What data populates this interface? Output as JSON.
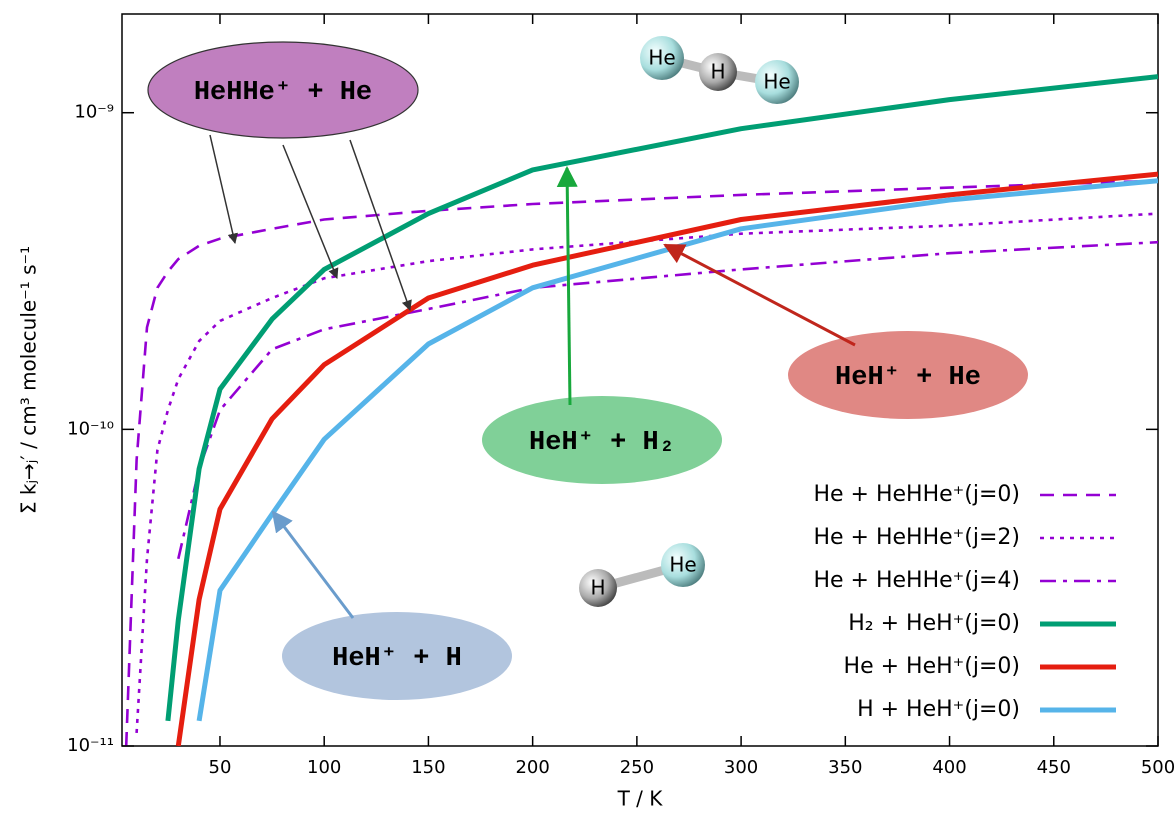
{
  "chart_data": {
    "type": "line",
    "x_label": "T / K",
    "y_label": "Σ kⱼ→ⱼ′ / cm³ molecule⁻¹ s⁻¹",
    "log_y": true,
    "xlim": [
      3,
      500
    ],
    "ylim": [
      1e-11,
      2.05e-09
    ],
    "xticks": [
      50,
      100,
      150,
      200,
      250,
      300,
      350,
      400,
      450,
      500
    ],
    "yticks": [
      {
        "value": 1e-11,
        "label": "10⁻¹¹"
      },
      {
        "value": 1e-10,
        "label": "10⁻¹⁰"
      },
      {
        "value": 1e-09,
        "label": "10⁻⁹"
      }
    ],
    "legend": "lower right",
    "x": [
      5,
      10,
      15,
      20,
      25,
      30,
      40,
      50,
      75,
      100,
      150,
      200,
      300,
      400,
      500
    ],
    "series": [
      {
        "name": "He + HeHHe⁺(j=0)",
        "color": "#9400d3",
        "style": "dashed",
        "values": [
          1e-11,
          8e-11,
          2.1e-10,
          2.8e-10,
          3.15e-10,
          3.45e-10,
          3.8e-10,
          4e-10,
          4.3e-10,
          4.6e-10,
          4.9e-10,
          5.15e-10,
          5.5e-10,
          5.8e-10,
          6.1e-10
        ]
      },
      {
        "name": "He + HeHHe⁺(j=2)",
        "color": "#9400d3",
        "style": "dotted",
        "values": [
          null,
          1.1e-11,
          3.9e-11,
          8.6e-11,
          1.15e-10,
          1.44e-10,
          1.9e-10,
          2.2e-10,
          2.6e-10,
          3e-10,
          3.4e-10,
          3.7e-10,
          4.15e-10,
          4.4e-10,
          4.8e-10
        ]
      },
      {
        "name": "He + HeHHe⁺(j=4)",
        "color": "#9400d3",
        "style": "dashdot",
        "values": [
          null,
          null,
          null,
          null,
          null,
          3.9e-11,
          7.5e-11,
          1.15e-10,
          1.79e-10,
          2.07e-10,
          2.4e-10,
          2.8e-10,
          3.2e-10,
          3.6e-10,
          3.9e-10
        ]
      },
      {
        "name": "H₂ + HeH⁺(j=0)",
        "color": "#009e73",
        "style": "solid",
        "values": [
          null,
          null,
          null,
          null,
          1.2e-11,
          2.5e-11,
          7.5e-11,
          1.34e-10,
          2.23e-10,
          3.2e-10,
          4.8e-10,
          6.6e-10,
          8.9e-10,
          1.1e-09,
          1.3e-09
        ]
      },
      {
        "name": "He + HeH⁺(j=0)",
        "color": "#e51e10",
        "style": "solid",
        "values": [
          null,
          null,
          null,
          null,
          null,
          1e-11,
          2.9e-11,
          5.6e-11,
          1.08e-10,
          1.6e-10,
          2.6e-10,
          3.3e-10,
          4.6e-10,
          5.5e-10,
          6.4e-10
        ]
      },
      {
        "name": "H + HeH⁺(j=0)",
        "color": "#56b4e9",
        "style": "solid",
        "values": [
          null,
          null,
          null,
          null,
          null,
          null,
          1.2e-11,
          3.1e-11,
          5.4e-11,
          9.3e-11,
          1.86e-10,
          2.8e-10,
          4.3e-10,
          5.3e-10,
          6.1e-10
        ]
      }
    ],
    "annotations": [
      {
        "text": "HeHHe⁺ + He",
        "color": "#c07fbf"
      },
      {
        "text": "HeH⁺ + He",
        "color": "#e08884"
      },
      {
        "text": "HeH⁺ + H₂",
        "color": "#80d098"
      },
      {
        "text": "HeH⁺ + H",
        "color": "#b2c5de"
      }
    ],
    "molecules": [
      {
        "atoms": [
          "He",
          "H",
          "He"
        ]
      },
      {
        "atoms": [
          "H",
          "He"
        ]
      }
    ]
  }
}
